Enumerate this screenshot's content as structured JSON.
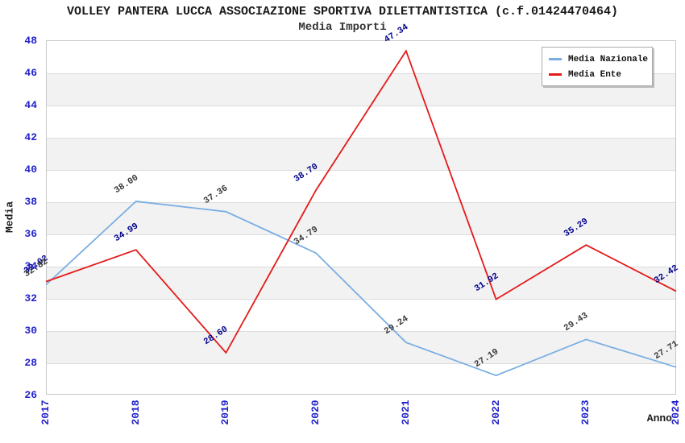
{
  "chart_data": {
    "type": "line",
    "title": "VOLLEY PANTERA LUCCA ASSOCIAZIONE SPORTIVA DILETTANTISTICA (c.f.01424470464)",
    "subtitle": "Media Importi",
    "xlabel": "Anno",
    "ylabel": "Media",
    "categories": [
      "2017",
      "2018",
      "2019",
      "2020",
      "2021",
      "2022",
      "2023",
      "2024"
    ],
    "series": [
      {
        "name": "Media Nazionale",
        "color": "#7aaee3",
        "label_color": "#3a3a3a",
        "values": [
          32.82,
          38.0,
          37.36,
          34.79,
          29.24,
          27.19,
          29.43,
          27.71
        ]
      },
      {
        "name": "Media Ente",
        "color": "#e41a1a",
        "label_color": "#00008b",
        "values": [
          33.02,
          34.99,
          28.6,
          38.7,
          47.34,
          31.92,
          35.29,
          32.42
        ]
      }
    ],
    "ylim": [
      26,
      48
    ],
    "ytick_step": 2,
    "grid": "horizontal-bands",
    "legend_position": "top-right",
    "colors": {
      "tick_label": "#2222cc",
      "band": "#f2f2f2",
      "gridline": "#dcdcdc",
      "plot_border": "#c8c8c8",
      "background": "#ffffff"
    }
  }
}
